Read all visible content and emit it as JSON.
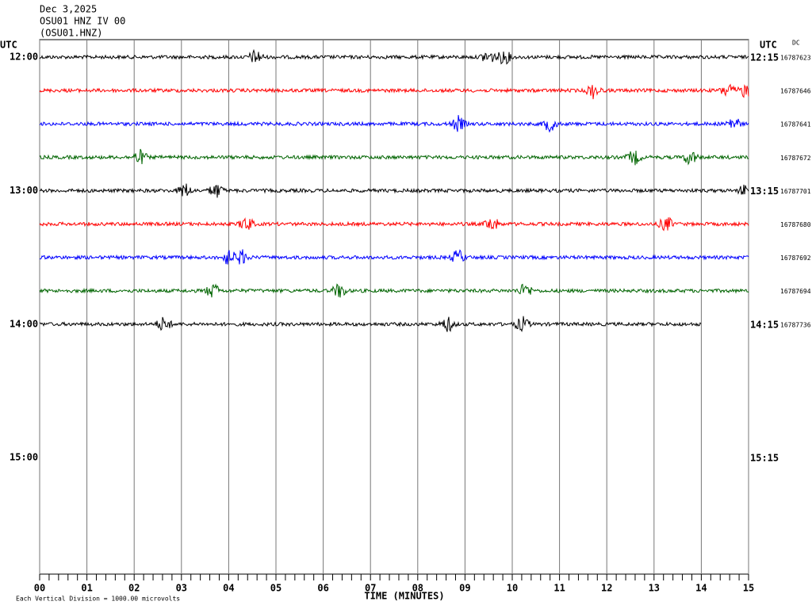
{
  "header": {
    "date": "Dec 3,2025",
    "station": "OSU01 HNZ IV 00",
    "channel": "(OSU01.HNZ)"
  },
  "left_axis": {
    "title": "UTC",
    "labels": [
      "12:00",
      "13:00",
      "14:00",
      "15:00"
    ]
  },
  "right_axis": {
    "title": "UTC",
    "labels": [
      "12:15",
      "13:15",
      "14:15",
      "15:15"
    ],
    "dc_title": "DC",
    "dc_values": [
      "16787623",
      "16787646",
      "16787641",
      "16787672",
      "16787701",
      "16787680",
      "16787692",
      "16787694",
      "16787736"
    ]
  },
  "x_axis": {
    "ticks": [
      "00",
      "01",
      "02",
      "03",
      "04",
      "05",
      "06",
      "07",
      "08",
      "09",
      "10",
      "11",
      "12",
      "13",
      "14",
      "15"
    ],
    "title": "TIME (MINUTES)"
  },
  "traces": [
    {
      "color": "#000000",
      "end": 15
    },
    {
      "color": "#ff0000",
      "end": 15
    },
    {
      "color": "#0000ff",
      "end": 15
    },
    {
      "color": "#006400",
      "end": 15
    },
    {
      "color": "#000000",
      "end": 15
    },
    {
      "color": "#ff0000",
      "end": 15
    },
    {
      "color": "#0000ff",
      "end": 15
    },
    {
      "color": "#006400",
      "end": 15
    },
    {
      "color": "#000000",
      "end": 14
    }
  ],
  "footnote": "Each Vertical Division = 1000.00 microvolts"
}
